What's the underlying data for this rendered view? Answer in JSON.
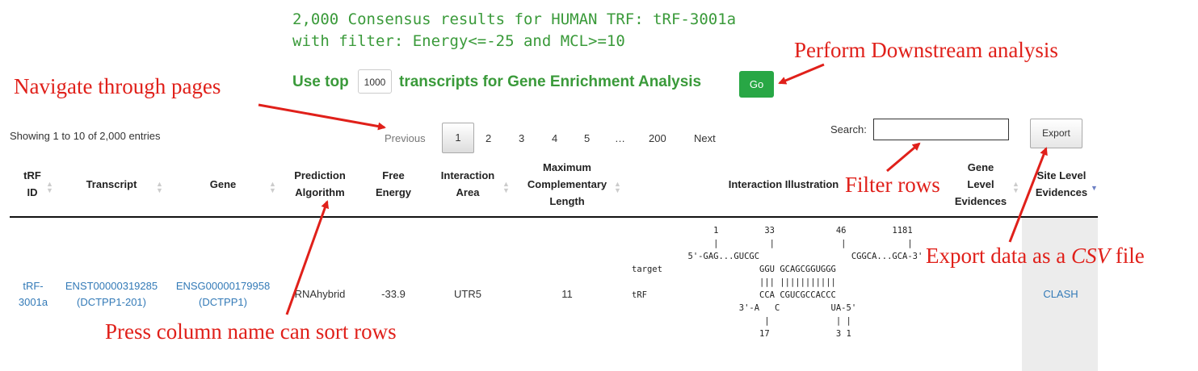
{
  "header": {
    "line1": "2,000 Consensus results for HUMAN TRF: tRF-3001a",
    "line2": "with filter: Energy<=-25 and MCL>=10",
    "use_top_label": "Use top",
    "top_n_value": "1000",
    "enrichment_label": "transcripts for Gene Enrichment Analysis",
    "go_label": "Go"
  },
  "table_info": "Showing 1 to 10 of 2,000 entries",
  "pagination": {
    "previous": "Previous",
    "pages": [
      "1",
      "2",
      "3",
      "4",
      "5",
      "…",
      "200"
    ],
    "next": "Next",
    "current": "1"
  },
  "search": {
    "label": "Search:",
    "value": ""
  },
  "export_label": "Export",
  "columns": {
    "trf_id": [
      "tRF",
      "ID"
    ],
    "transcript": [
      "Transcript"
    ],
    "gene": [
      "Gene"
    ],
    "algorithm": [
      "Prediction",
      "Algorithm"
    ],
    "energy": [
      "Free",
      "Energy"
    ],
    "area": [
      "Interaction",
      "Area"
    ],
    "mcl": [
      "Maximum",
      "Complementary",
      "Length"
    ],
    "illustration": [
      "Interaction Illustration"
    ],
    "gene_evidence": [
      "Gene",
      "Level",
      "Evidences"
    ],
    "site_evidence": [
      "Site Level",
      "Evidences"
    ]
  },
  "row": {
    "trf_id": [
      "tRF-",
      "3001a"
    ],
    "transcript": [
      "ENST00000319285",
      "(DCTPP1-201)"
    ],
    "gene": [
      "ENSG00000179958",
      "(DCTPP1)"
    ],
    "algorithm": "RNAhybrid",
    "energy": "-33.9",
    "area": "UTR5",
    "mcl": "11",
    "illustration": "                1         33            46         1181\n                |          |             |            |\n           5'-GAG...GUCGC                  CGGCA...GCA-3'\ntarget                   GGU GCAGCGGUGGG\n                         ||| |||||||||||\ntRF                      CCA CGUCGCCACCC\n                     3'-A   C          UA-5'\n                          |             | |\n                         17             3 1",
    "gene_evidence": "",
    "site_evidence": "CLASH"
  },
  "annotations": {
    "downstream": "Perform Downstream analysis",
    "navigate": "Navigate through pages",
    "filter": "Filter rows",
    "export_prefix": "Export data as a ",
    "export_csv": "CSV",
    "export_suffix": " file",
    "sort": "Press column name can sort rows"
  },
  "colors": {
    "header_green": "#3a9a3a",
    "go_button": "#28a745",
    "link_blue": "#337ab7",
    "annotation_red": "#e0201a"
  }
}
